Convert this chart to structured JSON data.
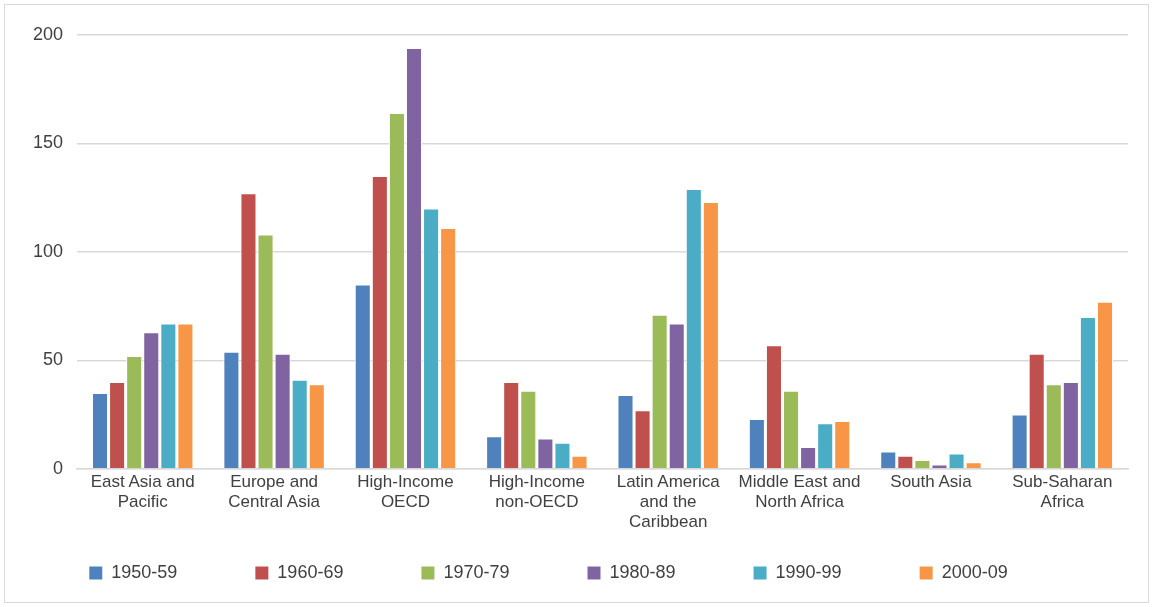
{
  "chart_data": {
    "type": "bar",
    "categories": [
      "East Asia and Pacific",
      "Europe and Central Asia",
      "High-Income OECD",
      "High-Income non-OECD",
      "Latin America and the Caribbean",
      "Middle East and North Africa",
      "South Asia",
      "Sub-Saharan Africa"
    ],
    "series": [
      {
        "name": "1950-59",
        "color": "#4f81bd",
        "values": [
          35,
          54,
          85,
          15,
          34,
          23,
          8,
          25
        ]
      },
      {
        "name": "1960-69",
        "color": "#c0504d",
        "values": [
          40,
          127,
          135,
          40,
          27,
          57,
          6,
          53
        ]
      },
      {
        "name": "1970-79",
        "color": "#9bbb59",
        "values": [
          52,
          108,
          164,
          36,
          71,
          36,
          4,
          39
        ]
      },
      {
        "name": "1980-89",
        "color": "#8064a2",
        "values": [
          63,
          53,
          194,
          14,
          67,
          10,
          2,
          40
        ]
      },
      {
        "name": "1990-99",
        "color": "#4bacc6",
        "values": [
          67,
          41,
          120,
          12,
          129,
          21,
          7,
          70
        ]
      },
      {
        "name": "2000-09",
        "color": "#f79646",
        "values": [
          67,
          39,
          111,
          6,
          123,
          22,
          3,
          77
        ]
      }
    ],
    "ylim": [
      0,
      200
    ],
    "yticks": [
      0,
      50,
      100,
      150,
      200
    ],
    "grid": "y",
    "legend": "bottom"
  }
}
